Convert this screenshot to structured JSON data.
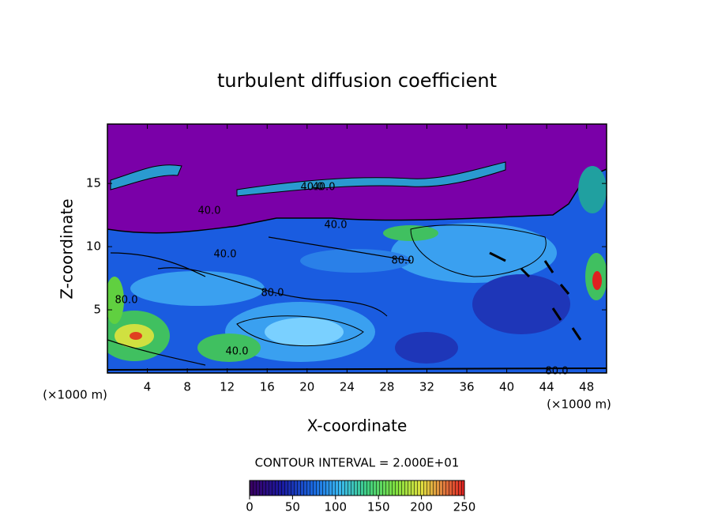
{
  "chart_data": {
    "type": "contour",
    "title": "turbulent diffusion coefficient",
    "x_label": "X-coordinate",
    "y_label": "Z-coordinate",
    "x_unit_label": "(×1000 m)",
    "y_unit_label": "(×1000 m)",
    "xlim": [
      0,
      50
    ],
    "xticks": [
      4,
      8,
      12,
      16,
      20,
      24,
      28,
      32,
      36,
      40,
      44,
      48
    ],
    "ylim": [
      0,
      19.7
    ],
    "yticks": [
      5,
      10,
      15
    ],
    "contour_labels": [
      "40.0",
      "40.0",
      "40.0",
      "40.0",
      "40.0",
      "80.0",
      "80.0",
      "80.0",
      "80.0",
      "40.0"
    ],
    "contour_interval": "CONTOUR INTERVAL = 2.000E+01",
    "colorbar": {
      "lim": [
        0,
        250
      ],
      "ticks": [
        0,
        50,
        100,
        150,
        200,
        250
      ]
    }
  }
}
